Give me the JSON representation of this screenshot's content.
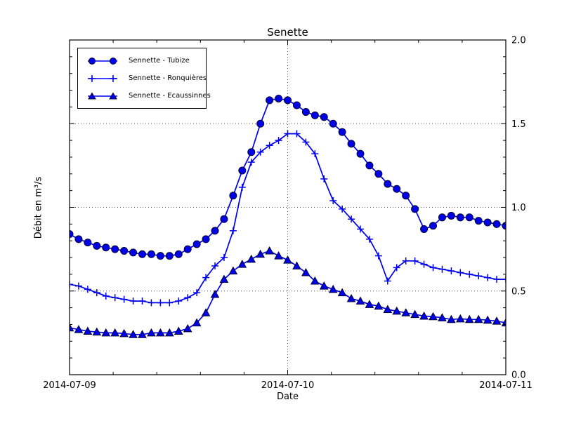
{
  "figure": {
    "title": "Senette"
  },
  "chart_data": {
    "type": "line",
    "title": "Senette",
    "xlabel": "Date",
    "ylabel": "Débit en m³/s",
    "x_tick_labels": [
      "2014-07-09",
      "2014-07-10",
      "2014-07-11"
    ],
    "x_tick_hours": [
      0,
      24,
      48
    ],
    "x_range_hours": 48,
    "x_sample_interval_hours": 1,
    "y_tick_labels": [
      "0.0",
      "0.5",
      "1.0",
      "1.5",
      "2.0"
    ],
    "y_tick_values": [
      0,
      0.5,
      1.0,
      1.5,
      2.0
    ],
    "ylim": [
      0,
      2
    ],
    "y_minor_interval": 0.1,
    "x_minor_intervals_per_day": 5,
    "grid_y_values": [
      0.5,
      1.0,
      1.5
    ],
    "grid_x_hours": [
      24
    ],
    "legend_position": "upper-left",
    "line_color": "#0000f0",
    "marker_fill": "#0000e8",
    "marker_edge": "#000030",
    "series": [
      {
        "name": "Sennette - Tubize",
        "marker": "circle",
        "values": [
          0.84,
          0.81,
          0.79,
          0.77,
          0.76,
          0.75,
          0.74,
          0.73,
          0.72,
          0.72,
          0.71,
          0.71,
          0.72,
          0.75,
          0.78,
          0.81,
          0.86,
          0.93,
          1.07,
          1.22,
          1.33,
          1.5,
          1.64,
          1.65,
          1.64,
          1.61,
          1.57,
          1.55,
          1.54,
          1.5,
          1.45,
          1.38,
          1.32,
          1.25,
          1.2,
          1.14,
          1.11,
          1.07,
          0.99,
          0.87,
          0.89,
          0.94,
          0.95,
          0.94,
          0.94,
          0.92,
          0.91,
          0.9,
          0.89
        ]
      },
      {
        "name": "Sennette - Ronquières",
        "marker": "plus",
        "values": [
          0.54,
          0.53,
          0.51,
          0.49,
          0.47,
          0.46,
          0.45,
          0.44,
          0.44,
          0.43,
          0.43,
          0.43,
          0.44,
          0.46,
          0.49,
          0.58,
          0.65,
          0.7,
          0.86,
          1.12,
          1.27,
          1.33,
          1.37,
          1.4,
          1.44,
          1.44,
          1.39,
          1.32,
          1.17,
          1.04,
          0.99,
          0.93,
          0.87,
          0.81,
          0.71,
          0.56,
          0.64,
          0.68,
          0.68,
          0.66,
          0.64,
          0.63,
          0.62,
          0.61,
          0.6,
          0.59,
          0.58,
          0.57,
          0.57
        ]
      },
      {
        "name": "Sennette - Ecaussinnes",
        "marker": "triangle",
        "values": [
          0.28,
          0.27,
          0.26,
          0.255,
          0.25,
          0.25,
          0.246,
          0.24,
          0.24,
          0.25,
          0.25,
          0.25,
          0.26,
          0.275,
          0.31,
          0.37,
          0.48,
          0.57,
          0.62,
          0.66,
          0.69,
          0.72,
          0.74,
          0.71,
          0.685,
          0.65,
          0.61,
          0.56,
          0.53,
          0.51,
          0.49,
          0.455,
          0.44,
          0.42,
          0.41,
          0.39,
          0.38,
          0.37,
          0.36,
          0.35,
          0.347,
          0.34,
          0.33,
          0.334,
          0.33,
          0.33,
          0.326,
          0.32,
          0.31
        ]
      }
    ]
  }
}
